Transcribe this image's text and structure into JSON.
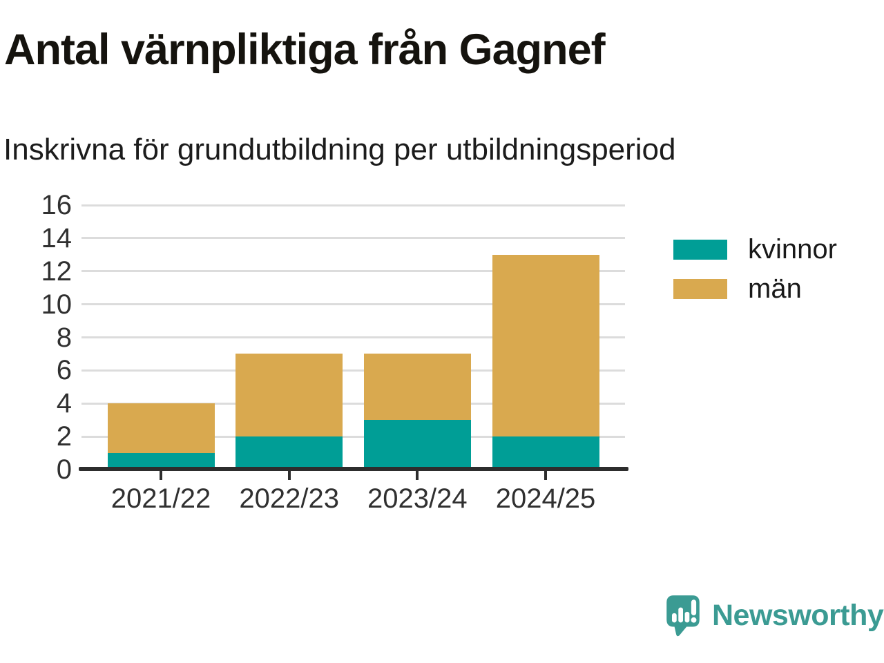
{
  "header": {
    "title": "Antal värnpliktiga från Gagnef",
    "subtitle": "Inskrivna för grundutbildning per utbildningsperiod"
  },
  "chart_data": {
    "type": "bar",
    "stacked": true,
    "title": "Antal värnpliktiga från Gagnef",
    "subtitle": "Inskrivna för grundutbildning per utbildningsperiod",
    "categories": [
      "2021/22",
      "2022/23",
      "2023/24",
      "2024/25"
    ],
    "series": [
      {
        "name": "kvinnor",
        "color": "#009e96",
        "values": [
          1,
          2,
          3,
          2
        ]
      },
      {
        "name": "män",
        "color": "#d9a94f",
        "values": [
          3,
          5,
          4,
          11
        ]
      }
    ],
    "totals": [
      4,
      7,
      7,
      13
    ],
    "xlabel": "",
    "ylabel": "",
    "ylim": [
      0,
      16
    ],
    "yticks": [
      0,
      2,
      4,
      6,
      8,
      10,
      12,
      14,
      16
    ],
    "grid": true,
    "gridline_color": "#dcdcdc",
    "axis_color": "#2d2d2d",
    "tick_label_color": "#303030",
    "legend_position": "right"
  },
  "branding": {
    "logo_text": "Newsworthy",
    "logo_color": "#3b9b93",
    "logo_icon": "newsworthy-speech-bubble-chart-icon"
  }
}
